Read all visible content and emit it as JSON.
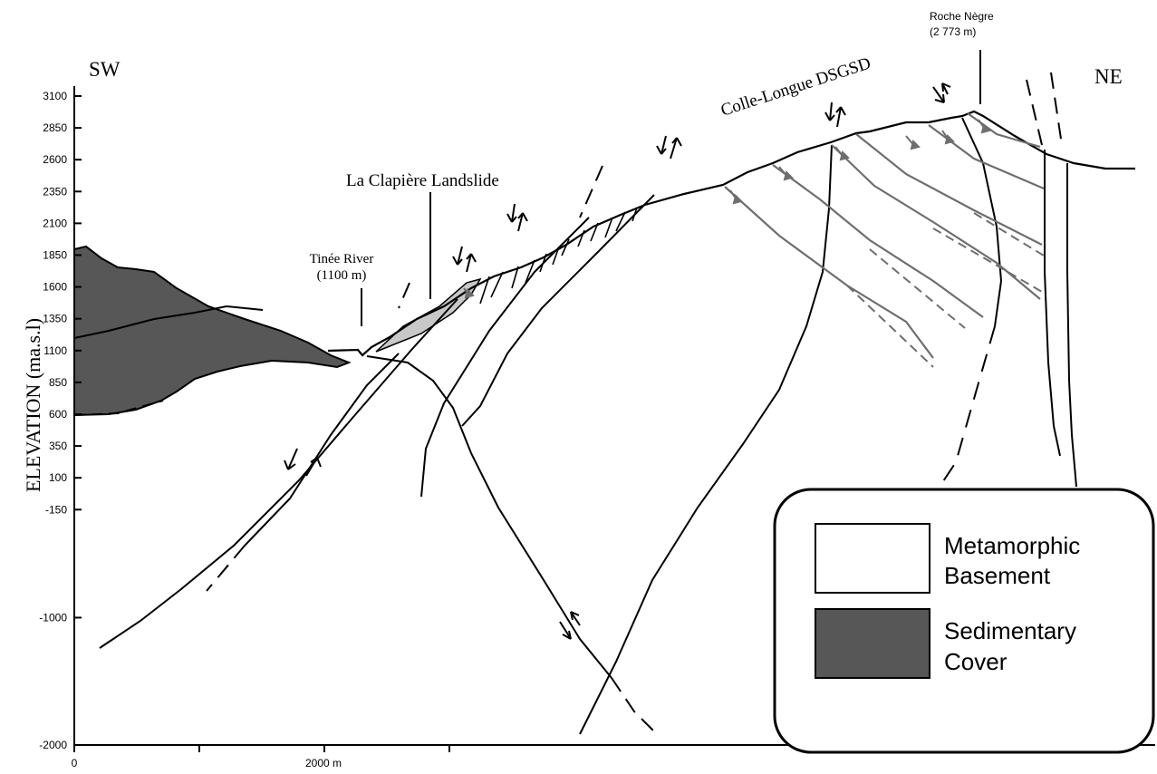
{
  "labels": {
    "sw": "SW",
    "ne": "NE",
    "y_axis": "ELEVATION (ma.s.l)",
    "landslide": "La Clapière Landslide",
    "river_name": "Tinée River",
    "river_elev": "(1100 m)",
    "dsgsd": "Colle-Longue DSGSD",
    "peak_name": "Roche Nègre",
    "peak_elev": "(2 773 m)"
  },
  "y_ticks": [
    "3100",
    "2850",
    "2600",
    "2350",
    "2100",
    "1850",
    "1600",
    "1350",
    "1100",
    "850",
    "600",
    "350",
    "100",
    "-150",
    "-1000",
    "-2000"
  ],
  "x_ticks": [
    "0",
    "2000 m"
  ],
  "legend": {
    "items": [
      {
        "line1": "Metamorphic",
        "line2": "Basement",
        "fill": "#ffffff"
      },
      {
        "line1": "Sedimentary",
        "line2": "Cover",
        "fill": "#575757"
      }
    ]
  },
  "colors": {
    "sediment": "#575757",
    "landslide": "#c8c8c8",
    "ink": "#000000",
    "gray_line": "#6e6e6e"
  }
}
